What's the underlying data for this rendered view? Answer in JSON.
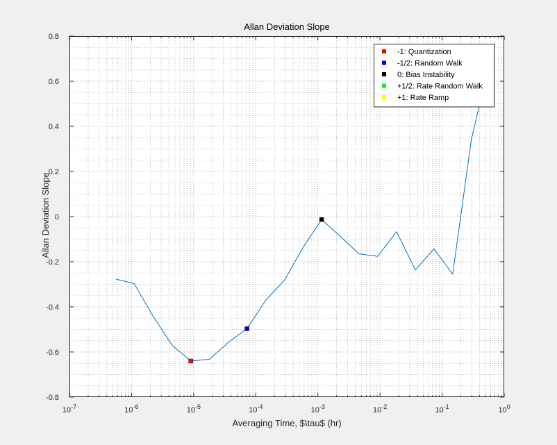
{
  "chart_data": {
    "type": "line",
    "title": "Allan Deviation Slope",
    "xlabel": "Averaging Time, $\\tau$ (hr)",
    "ylabel": "Allan Deviation Slope",
    "xscale": "log",
    "xlim": [
      1e-07,
      1
    ],
    "ylim": [
      -0.8,
      0.8
    ],
    "grid": true,
    "minor_grid": true,
    "x_ticks": [
      {
        "value": 1e-07,
        "base": "10",
        "exp": "-7"
      },
      {
        "value": 1e-06,
        "base": "10",
        "exp": "-6"
      },
      {
        "value": 1e-05,
        "base": "10",
        "exp": "-5"
      },
      {
        "value": 0.0001,
        "base": "10",
        "exp": "-4"
      },
      {
        "value": 0.001,
        "base": "10",
        "exp": "-3"
      },
      {
        "value": 0.01,
        "base": "10",
        "exp": "-2"
      },
      {
        "value": 0.1,
        "base": "10",
        "exp": "-1"
      },
      {
        "value": 1,
        "base": "10",
        "exp": "0"
      }
    ],
    "y_ticks": [
      {
        "value": -0.8,
        "label": "-0.8"
      },
      {
        "value": -0.6,
        "label": "-0.6"
      },
      {
        "value": -0.4,
        "label": "-0.4"
      },
      {
        "value": -0.2,
        "label": "-0.2"
      },
      {
        "value": 0,
        "label": "0"
      },
      {
        "value": 0.2,
        "label": "0.2"
      },
      {
        "value": 0.4,
        "label": "0.4"
      },
      {
        "value": 0.6,
        "label": "0.6"
      },
      {
        "value": 0.8,
        "label": "0.8"
      }
    ],
    "series": [
      {
        "color": "#0072bd",
        "x": [
          5.6e-07,
          1.1e-06,
          2.2e-06,
          4.5e-06,
          9e-06,
          1.8e-05,
          3.6e-05,
          7.2e-05,
          0.000145,
          0.00029,
          0.00058,
          0.00115,
          0.0023,
          0.0046,
          0.0092,
          0.0185,
          0.037,
          0.074,
          0.148,
          0.295,
          0.45
        ],
        "y": [
          -0.277,
          -0.297,
          -0.44,
          -0.57,
          -0.64,
          -0.632,
          -0.558,
          -0.497,
          -0.37,
          -0.282,
          -0.135,
          -0.013,
          -0.088,
          -0.165,
          -0.176,
          -0.067,
          -0.236,
          -0.143,
          -0.255,
          0.34,
          0.556
        ]
      }
    ],
    "markers": [
      {
        "label": "-1: Quantization",
        "color": "#ff0000",
        "x": 9e-06,
        "y": -0.64
      },
      {
        "label": "-1/2: Random Walk",
        "color": "#0000ff",
        "x": 7.2e-05,
        "y": -0.497
      },
      {
        "label": "0: Bias Instability",
        "color": "#000000",
        "x": 0.00115,
        "y": -0.013
      },
      {
        "label": "+1/2: Rate Random Walk",
        "color": "#00ff00",
        "x": null,
        "y": null
      },
      {
        "label": "+1: Rate Ramp",
        "color": "#ffff00",
        "x": null,
        "y": null
      }
    ],
    "legend_position": "top-right"
  }
}
